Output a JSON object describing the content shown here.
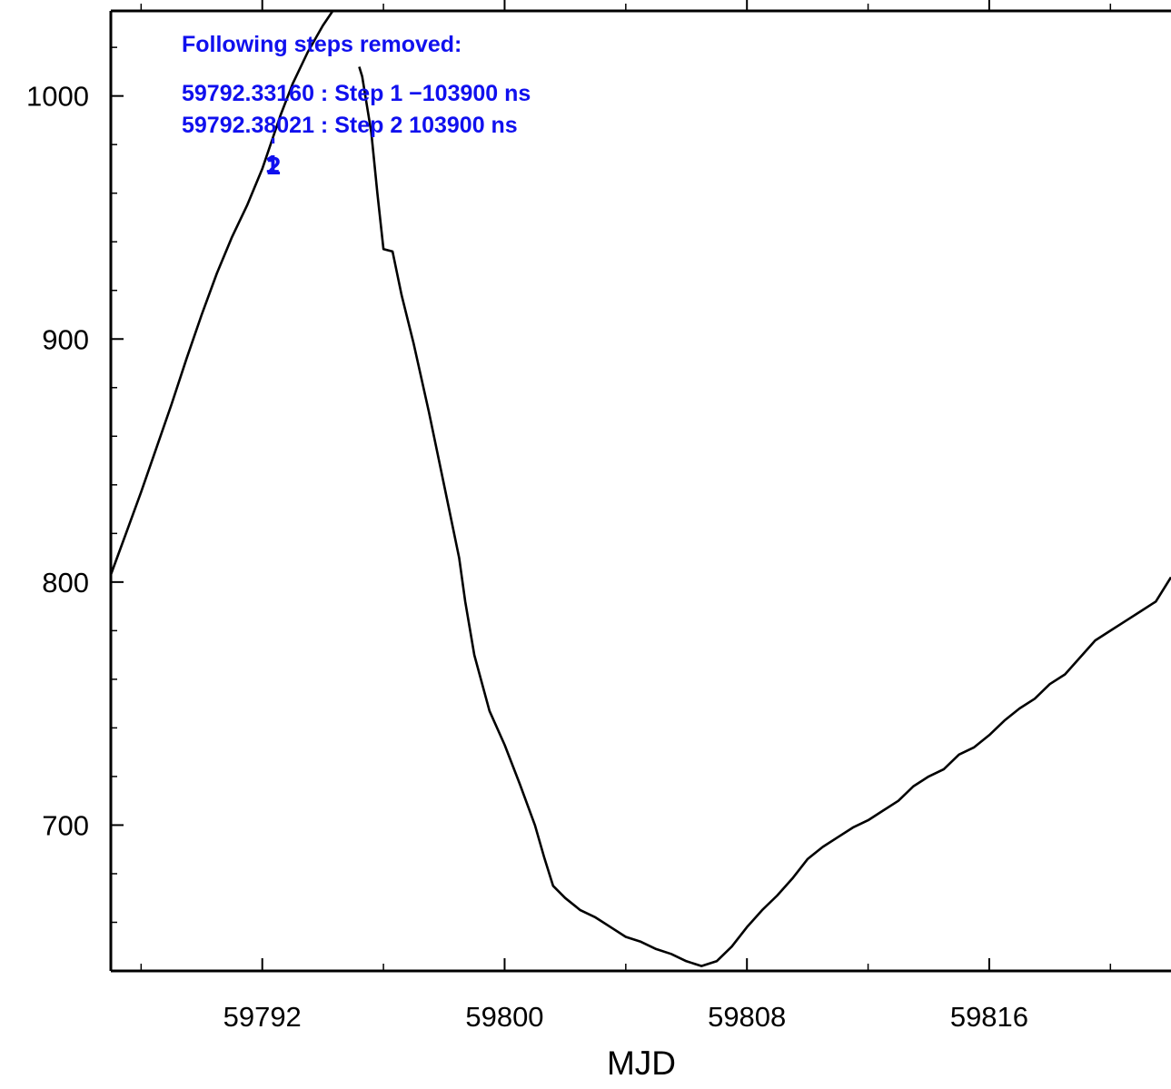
{
  "colors": {
    "annotation": "#1010ee",
    "series": "#000000",
    "axes": "#000000"
  },
  "annotation": {
    "header": "Following steps removed:",
    "lines": [
      "59792.33160 : Step 1 −103900 ns",
      "59792.38021 : Step 2 103900 ns"
    ]
  },
  "chart_data": {
    "type": "line",
    "title": "",
    "xlabel": "MJD",
    "ylabel": "",
    "xlim": [
      59787.0,
      59822.0
    ],
    "ylim": [
      640,
      1035
    ],
    "grid": false,
    "x_ticks": [
      59792,
      59800,
      59808,
      59816
    ],
    "y_ticks": [
      700,
      800,
      900,
      1000
    ],
    "step_markers": [
      {
        "label": "1",
        "x": 59792.3316
      },
      {
        "label": "2",
        "x": 59792.3802
      }
    ],
    "series": [
      {
        "x": [
          59787.0,
          59787.5,
          59788.0,
          59788.5,
          59789.0,
          59789.5,
          59790.0,
          59790.5,
          59791.0,
          59791.5,
          59792.0,
          59792.3,
          59792.6,
          59793.0,
          59793.5,
          59794.0,
          59794.6,
          59795.2
        ],
        "values": [
          803,
          820,
          837,
          855,
          873,
          892,
          910,
          927,
          942,
          955,
          970,
          981,
          992,
          1005,
          1018,
          1029,
          1040,
          1050
        ]
      },
      {
        "x": [
          59795.2,
          59795.3,
          59795.6,
          59795.8,
          59796.0,
          59796.3,
          59796.6,
          59797.0,
          59797.5,
          59798.0,
          59798.5,
          59798.7,
          59799.0,
          59799.5,
          59800.0,
          59800.5,
          59801.0,
          59801.3,
          59801.6,
          59802.0,
          59802.5,
          59803.0,
          59803.5,
          59804.0,
          59804.5,
          59805.0,
          59805.5,
          59806.0,
          59806.5,
          59807.0,
          59807.5,
          59808.0,
          59808.5,
          59809.0,
          59809.5,
          59810.0,
          59810.5,
          59811.0,
          59811.5,
          59812.0,
          59812.5,
          59813.0,
          59813.5,
          59814.0,
          59814.5,
          59815.0,
          59815.5,
          59816.0,
          59816.5,
          59817.0,
          59817.5,
          59818.0,
          59818.5,
          59819.0,
          59819.5,
          59820.0,
          59820.5,
          59821.0,
          59821.5,
          59822.0
        ],
        "values": [
          1012,
          1008,
          985,
          960,
          937,
          936,
          918,
          898,
          870,
          840,
          810,
          792,
          770,
          747,
          733,
          717,
          700,
          687,
          675,
          670,
          665,
          662,
          658,
          654,
          652,
          649,
          647,
          644,
          642,
          644,
          650,
          658,
          665,
          671,
          678,
          686,
          691,
          695,
          699,
          702,
          706,
          710,
          716,
          720,
          723,
          729,
          732,
          737,
          743,
          748,
          752,
          758,
          762,
          769,
          776,
          780,
          784,
          788,
          792,
          802
        ]
      }
    ]
  }
}
